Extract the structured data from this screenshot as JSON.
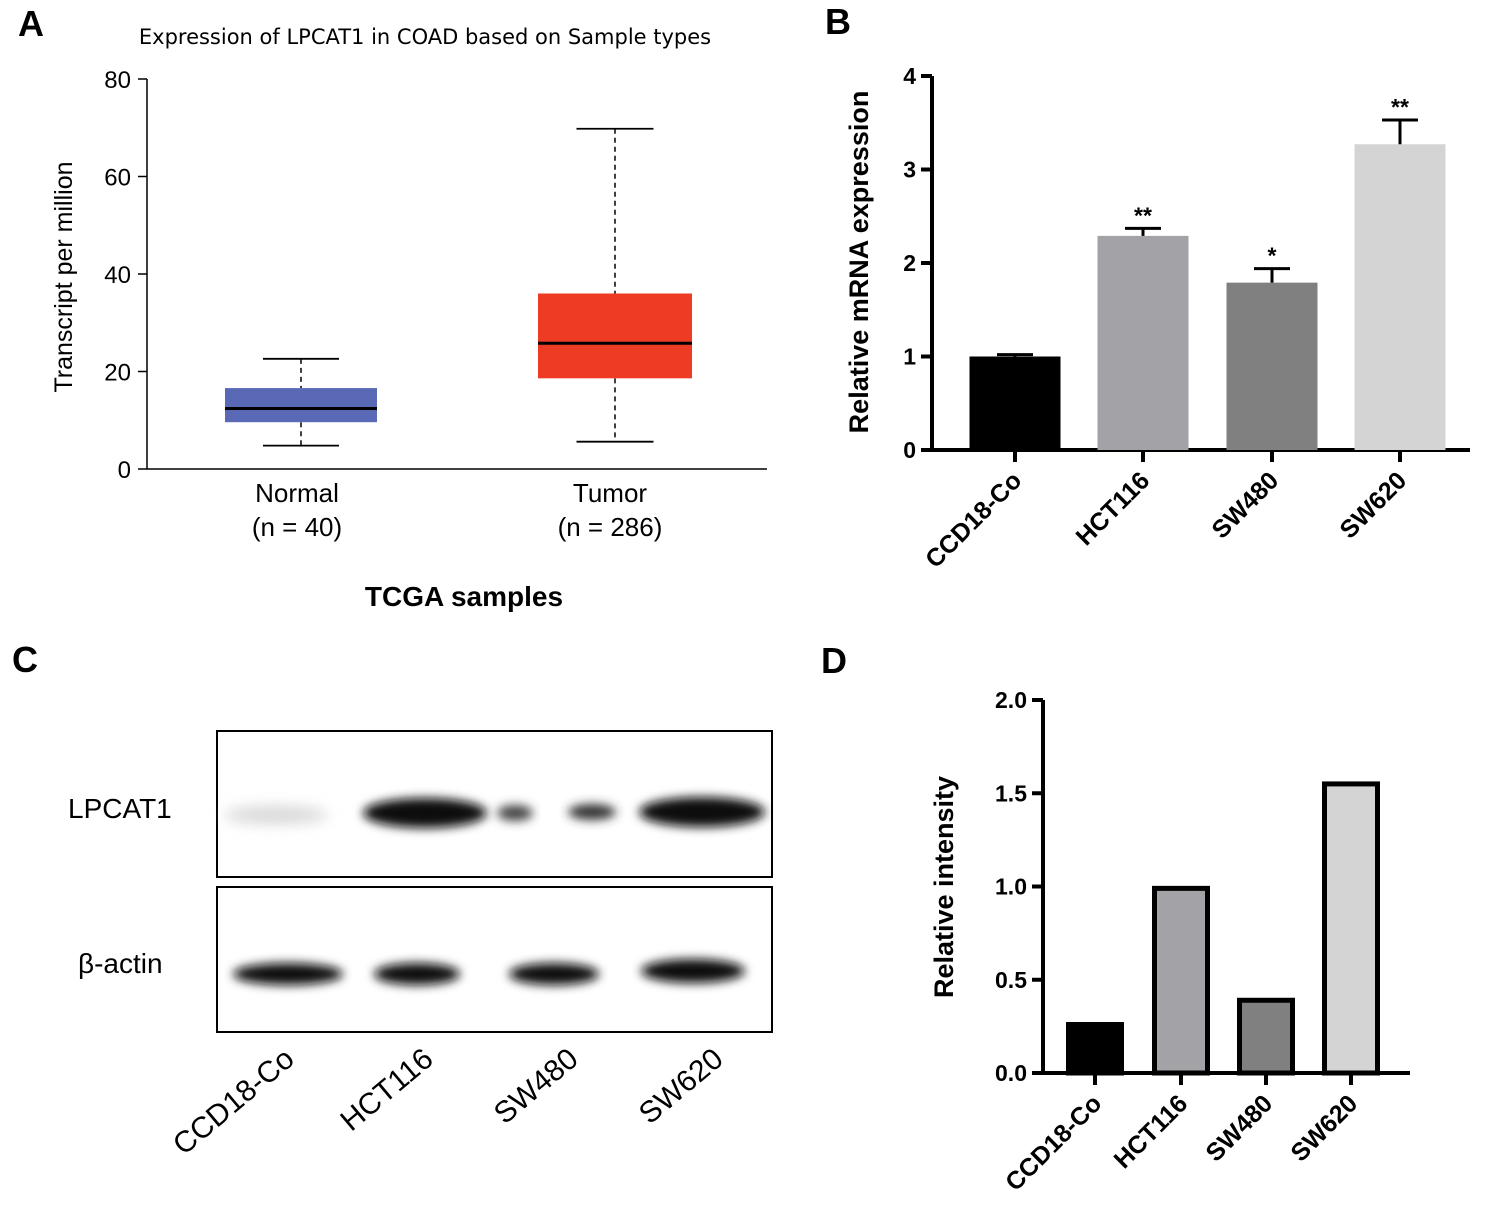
{
  "panels": {
    "A": {
      "label": "A",
      "chart_data": {
        "type": "box",
        "title": "Expression of LPCAT1 in COAD based on Sample types",
        "xlabel": "TCGA samples",
        "ylabel": "Transcript per million",
        "ylim": [
          0,
          80
        ],
        "yticks": [
          "0",
          "20",
          "40",
          "60",
          "80"
        ],
        "groups": [
          {
            "name": "Normal",
            "n_label": "(n = 40)",
            "whisker_low": 4.8,
            "q1": 9.6,
            "median": 12.4,
            "q3": 16.6,
            "whisker_high": 22.6,
            "color": "#5a69b5"
          },
          {
            "name": "Tumor",
            "n_label": "(n = 286)",
            "whisker_low": 5.6,
            "q1": 18.6,
            "median": 25.8,
            "q3": 36.0,
            "whisker_high": 69.8,
            "color": "#ee3b24"
          }
        ]
      }
    },
    "B": {
      "label": "B",
      "chart_data": {
        "type": "bar",
        "title": "",
        "xlabel": "",
        "ylabel": "Relative mRNA expression",
        "ylim": [
          0,
          4
        ],
        "yticks": [
          "0",
          "1",
          "2",
          "3",
          "4"
        ],
        "categories": [
          "CCD18-Co",
          "HCT116",
          "SW480",
          "SW620"
        ],
        "values": [
          1.0,
          2.29,
          1.79,
          3.27
        ],
        "errors": [
          0.02,
          0.08,
          0.15,
          0.26
        ],
        "significance": [
          "",
          "**",
          "*",
          "**"
        ],
        "colors": [
          "#000000",
          "#a3a3a7",
          "#808080",
          "#d4d4d4"
        ]
      }
    },
    "C": {
      "label": "C",
      "blot_rows": [
        "LPCAT1",
        "β-actin"
      ],
      "lanes": [
        "CCD18-Co",
        "HCT116",
        "SW480",
        "SW620"
      ]
    },
    "D": {
      "label": "D",
      "chart_data": {
        "type": "bar",
        "title": "",
        "xlabel": "",
        "ylabel": "Relative intensity",
        "ylim": [
          0,
          2.0
        ],
        "yticks": [
          "0.0",
          "0.5",
          "1.0",
          "1.5",
          "2.0"
        ],
        "categories": [
          "CCD18-Co",
          "HCT116",
          "SW480",
          "SW620"
        ],
        "values": [
          0.26,
          0.99,
          0.39,
          1.55
        ],
        "colors": [
          "#000000",
          "#a3a3a7",
          "#808080",
          "#d4d4d4"
        ]
      }
    }
  }
}
